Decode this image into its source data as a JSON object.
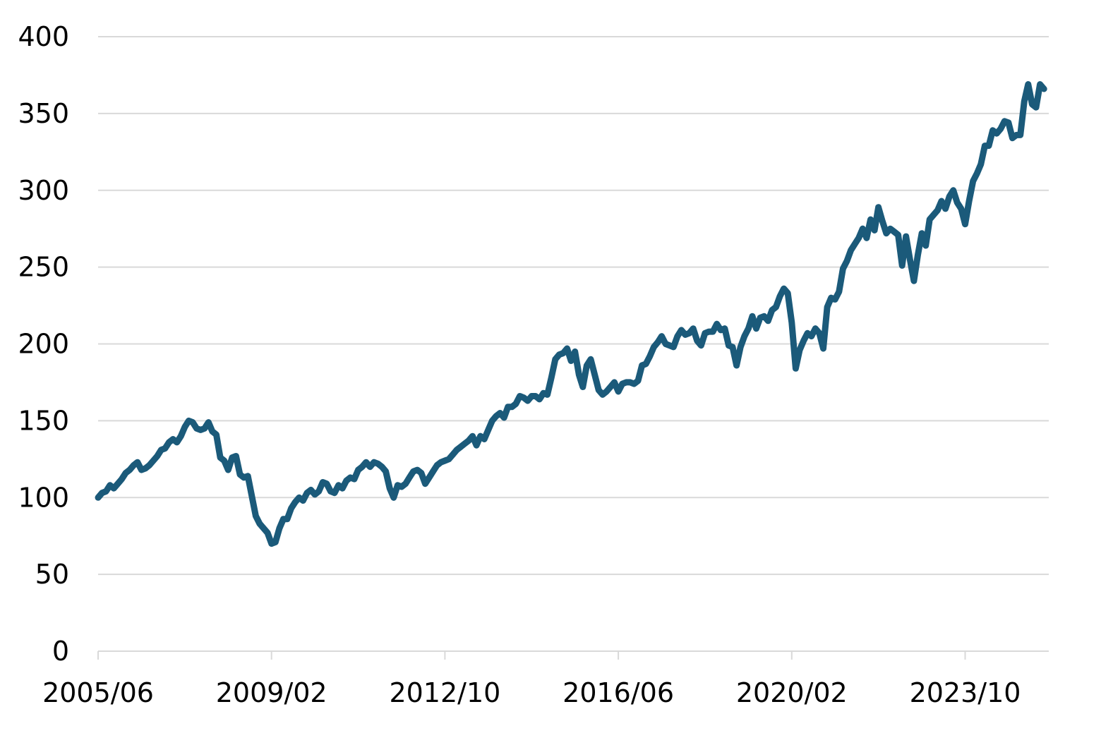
{
  "chart_data": {
    "type": "line",
    "title": "",
    "xlabel": "",
    "ylabel": "",
    "ylim": [
      0,
      400
    ],
    "yticks": [
      0,
      50,
      100,
      150,
      200,
      250,
      300,
      350,
      400
    ],
    "xticks": [
      "2005/06",
      "2009/02",
      "2012/10",
      "2016/06",
      "2020/02",
      "2023/10"
    ],
    "grid": true,
    "legend": "none",
    "line_color": "#1b5a7a",
    "series": [
      {
        "points": [
          [
            "2005/06",
            100
          ],
          [
            "2005/07",
            103
          ],
          [
            "2005/08",
            104
          ],
          [
            "2005/09",
            108
          ],
          [
            "2005/10",
            106
          ],
          [
            "2005/11",
            109
          ],
          [
            "2005/12",
            112
          ],
          [
            "2006/01",
            116
          ],
          [
            "2006/02",
            118
          ],
          [
            "2006/03",
            121
          ],
          [
            "2006/04",
            123
          ],
          [
            "2006/05",
            118
          ],
          [
            "2006/06",
            119
          ],
          [
            "2006/07",
            121
          ],
          [
            "2006/08",
            124
          ],
          [
            "2006/09",
            127
          ],
          [
            "2006/10",
            131
          ],
          [
            "2006/11",
            132
          ],
          [
            "2006/12",
            136
          ],
          [
            "2007/01",
            138
          ],
          [
            "2007/02",
            136
          ],
          [
            "2007/03",
            140
          ],
          [
            "2007/04",
            146
          ],
          [
            "2007/05",
            150
          ],
          [
            "2007/06",
            149
          ],
          [
            "2007/07",
            145
          ],
          [
            "2007/08",
            144
          ],
          [
            "2007/09",
            145
          ],
          [
            "2007/10",
            149
          ],
          [
            "2007/11",
            143
          ],
          [
            "2007/12",
            141
          ],
          [
            "2008/01",
            126
          ],
          [
            "2008/02",
            124
          ],
          [
            "2008/03",
            118
          ],
          [
            "2008/04",
            126
          ],
          [
            "2008/05",
            127
          ],
          [
            "2008/06",
            115
          ],
          [
            "2008/07",
            113
          ],
          [
            "2008/08",
            114
          ],
          [
            "2008/09",
            101
          ],
          [
            "2008/10",
            88
          ],
          [
            "2008/11",
            83
          ],
          [
            "2008/12",
            80
          ],
          [
            "2009/01",
            77
          ],
          [
            "2009/02",
            70
          ],
          [
            "2009/03",
            71
          ],
          [
            "2009/04",
            80
          ],
          [
            "2009/05",
            86
          ],
          [
            "2009/06",
            86
          ],
          [
            "2009/07",
            93
          ],
          [
            "2009/08",
            97
          ],
          [
            "2009/09",
            100
          ],
          [
            "2009/10",
            98
          ],
          [
            "2009/11",
            103
          ],
          [
            "2009/12",
            105
          ],
          [
            "2010/01",
            102
          ],
          [
            "2010/02",
            104
          ],
          [
            "2010/03",
            110
          ],
          [
            "2010/04",
            109
          ],
          [
            "2010/05",
            104
          ],
          [
            "2010/06",
            103
          ],
          [
            "2010/07",
            108
          ],
          [
            "2010/08",
            106
          ],
          [
            "2010/09",
            111
          ],
          [
            "2010/10",
            113
          ],
          [
            "2010/11",
            112
          ],
          [
            "2010/12",
            118
          ],
          [
            "2011/01",
            120
          ],
          [
            "2011/02",
            123
          ],
          [
            "2011/03",
            120
          ],
          [
            "2011/04",
            123
          ],
          [
            "2011/05",
            122
          ],
          [
            "2011/06",
            120
          ],
          [
            "2011/07",
            117
          ],
          [
            "2011/08",
            106
          ],
          [
            "2011/09",
            100
          ],
          [
            "2011/10",
            108
          ],
          [
            "2011/11",
            107
          ],
          [
            "2011/12",
            109
          ],
          [
            "2012/01",
            113
          ],
          [
            "2012/02",
            117
          ],
          [
            "2012/03",
            118
          ],
          [
            "2012/04",
            116
          ],
          [
            "2012/05",
            109
          ],
          [
            "2012/06",
            113
          ],
          [
            "2012/07",
            117
          ],
          [
            "2012/08",
            121
          ],
          [
            "2012/09",
            123
          ],
          [
            "2012/10",
            124
          ],
          [
            "2012/11",
            125
          ],
          [
            "2012/12",
            128
          ],
          [
            "2013/01",
            131
          ],
          [
            "2013/02",
            133
          ],
          [
            "2013/03",
            135
          ],
          [
            "2013/04",
            137
          ],
          [
            "2013/05",
            140
          ],
          [
            "2013/06",
            134
          ],
          [
            "2013/07",
            140
          ],
          [
            "2013/08",
            138
          ],
          [
            "2013/09",
            144
          ],
          [
            "2013/10",
            150
          ],
          [
            "2013/11",
            153
          ],
          [
            "2013/12",
            155
          ],
          [
            "2014/01",
            152
          ],
          [
            "2014/02",
            159
          ],
          [
            "2014/03",
            159
          ],
          [
            "2014/04",
            161
          ],
          [
            "2014/05",
            166
          ],
          [
            "2014/06",
            165
          ],
          [
            "2014/07",
            163
          ],
          [
            "2014/08",
            166
          ],
          [
            "2014/09",
            166
          ],
          [
            "2014/10",
            164
          ],
          [
            "2014/11",
            168
          ],
          [
            "2014/12",
            167
          ],
          [
            "2015/01",
            178
          ],
          [
            "2015/02",
            190
          ],
          [
            "2015/03",
            193
          ],
          [
            "2015/04",
            194
          ],
          [
            "2015/05",
            197
          ],
          [
            "2015/06",
            189
          ],
          [
            "2015/07",
            195
          ],
          [
            "2015/08",
            180
          ],
          [
            "2015/09",
            172
          ],
          [
            "2015/10",
            186
          ],
          [
            "2015/11",
            190
          ],
          [
            "2015/12",
            180
          ],
          [
            "2016/01",
            170
          ],
          [
            "2016/02",
            167
          ],
          [
            "2016/03",
            169
          ],
          [
            "2016/04",
            172
          ],
          [
            "2016/05",
            175
          ],
          [
            "2016/06",
            169
          ],
          [
            "2016/07",
            174
          ],
          [
            "2016/08",
            175
          ],
          [
            "2016/09",
            175
          ],
          [
            "2016/10",
            174
          ],
          [
            "2016/11",
            176
          ],
          [
            "2016/12",
            186
          ],
          [
            "2017/01",
            187
          ],
          [
            "2017/02",
            192
          ],
          [
            "2017/03",
            198
          ],
          [
            "2017/04",
            201
          ],
          [
            "2017/05",
            205
          ],
          [
            "2017/06",
            200
          ],
          [
            "2017/07",
            199
          ],
          [
            "2017/08",
            198
          ],
          [
            "2017/09",
            205
          ],
          [
            "2017/10",
            209
          ],
          [
            "2017/11",
            206
          ],
          [
            "2017/12",
            207
          ],
          [
            "2018/01",
            210
          ],
          [
            "2018/02",
            202
          ],
          [
            "2018/03",
            199
          ],
          [
            "2018/04",
            207
          ],
          [
            "2018/05",
            208
          ],
          [
            "2018/06",
            208
          ],
          [
            "2018/07",
            213
          ],
          [
            "2018/08",
            209
          ],
          [
            "2018/09",
            210
          ],
          [
            "2018/10",
            199
          ],
          [
            "2018/11",
            198
          ],
          [
            "2018/12",
            186
          ],
          [
            "2019/01",
            198
          ],
          [
            "2019/02",
            205
          ],
          [
            "2019/03",
            210
          ],
          [
            "2019/04",
            218
          ],
          [
            "2019/05",
            210
          ],
          [
            "2019/06",
            217
          ],
          [
            "2019/07",
            218
          ],
          [
            "2019/08",
            215
          ],
          [
            "2019/09",
            222
          ],
          [
            "2019/10",
            224
          ],
          [
            "2019/11",
            231
          ],
          [
            "2019/12",
            236
          ],
          [
            "2020/01",
            233
          ],
          [
            "2020/02",
            214
          ],
          [
            "2020/03",
            184
          ],
          [
            "2020/04",
            196
          ],
          [
            "2020/05",
            202
          ],
          [
            "2020/06",
            207
          ],
          [
            "2020/07",
            205
          ],
          [
            "2020/08",
            210
          ],
          [
            "2020/09",
            207
          ],
          [
            "2020/10",
            197
          ],
          [
            "2020/11",
            224
          ],
          [
            "2020/12",
            230
          ],
          [
            "2021/01",
            229
          ],
          [
            "2021/02",
            234
          ],
          [
            "2021/03",
            249
          ],
          [
            "2021/04",
            254
          ],
          [
            "2021/05",
            261
          ],
          [
            "2021/06",
            265
          ],
          [
            "2021/07",
            269
          ],
          [
            "2021/08",
            275
          ],
          [
            "2021/09",
            269
          ],
          [
            "2021/10",
            281
          ],
          [
            "2021/11",
            274
          ],
          [
            "2021/12",
            289
          ],
          [
            "2022/01",
            280
          ],
          [
            "2022/02",
            272
          ],
          [
            "2022/03",
            275
          ],
          [
            "2022/04",
            273
          ],
          [
            "2022/05",
            271
          ],
          [
            "2022/06",
            251
          ],
          [
            "2022/07",
            270
          ],
          [
            "2022/08",
            255
          ],
          [
            "2022/09",
            241
          ],
          [
            "2022/10",
            258
          ],
          [
            "2022/11",
            272
          ],
          [
            "2022/12",
            264
          ],
          [
            "2023/01",
            281
          ],
          [
            "2023/02",
            284
          ],
          [
            "2023/03",
            287
          ],
          [
            "2023/04",
            293
          ],
          [
            "2023/05",
            288
          ],
          [
            "2023/06",
            296
          ],
          [
            "2023/07",
            300
          ],
          [
            "2023/08",
            292
          ],
          [
            "2023/09",
            288
          ],
          [
            "2023/10",
            278
          ],
          [
            "2023/11",
            293
          ],
          [
            "2023/12",
            306
          ],
          [
            "2024/01",
            311
          ],
          [
            "2024/02",
            317
          ],
          [
            "2024/03",
            329
          ],
          [
            "2024/04",
            329
          ],
          [
            "2024/05",
            339
          ],
          [
            "2024/06",
            337
          ],
          [
            "2024/07",
            340
          ],
          [
            "2024/08",
            345
          ],
          [
            "2024/09",
            344
          ],
          [
            "2024/10",
            334
          ],
          [
            "2024/11",
            336
          ],
          [
            "2024/12",
            336
          ],
          [
            "2025/01",
            358
          ],
          [
            "2025/02",
            369
          ],
          [
            "2025/03",
            356
          ],
          [
            "2025/04",
            354
          ],
          [
            "2025/05",
            369
          ],
          [
            "2025/06",
            366
          ]
        ]
      }
    ]
  }
}
